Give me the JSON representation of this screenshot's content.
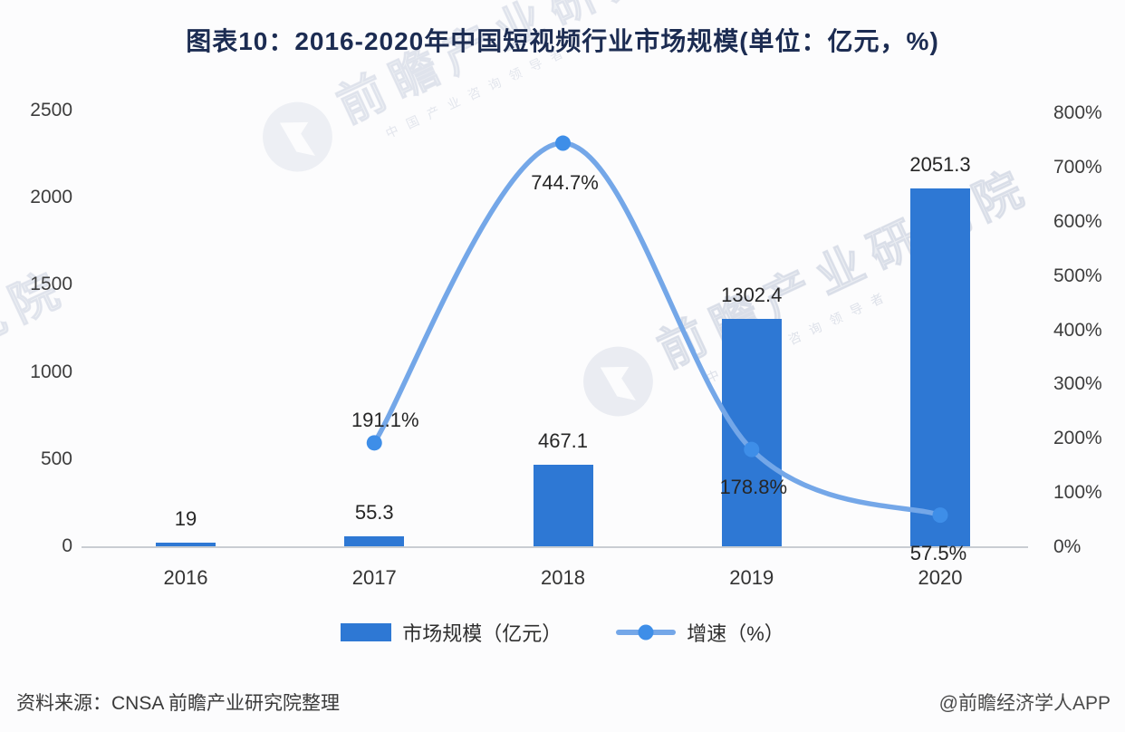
{
  "title": "图表10：2016-2020年中国短视频行业市场规模(单位：亿元，%)",
  "watermark": {
    "text": "前瞻产业研究院",
    "subtext": "中国产业咨询领导者"
  },
  "chart_data": {
    "type": "bar",
    "subtype": "bar+line combo, dual axis",
    "title": "图表10：2016-2020年中国短视频行业市场规模(单位：亿元，%)",
    "categories": [
      "2016",
      "2017",
      "2018",
      "2019",
      "2020"
    ],
    "series": [
      {
        "name": "市场规模（亿元）",
        "type": "bar",
        "axis": "left",
        "values": [
          19,
          55.3,
          467.1,
          1302.4,
          2051.3
        ]
      },
      {
        "name": "增速（%）",
        "type": "line",
        "axis": "right",
        "values": [
          null,
          191.1,
          744.7,
          178.8,
          57.5
        ]
      }
    ],
    "left_axis": {
      "min": 0,
      "max": 2500,
      "ticks": [
        "2500",
        "2000",
        "1500",
        "1000",
        "500",
        "0"
      ]
    },
    "right_axis": {
      "min": 0,
      "max": 800,
      "ticks": [
        "800%",
        "700%",
        "600%",
        "500%",
        "400%",
        "300%",
        "200%",
        "100%",
        "0%"
      ]
    },
    "legend": [
      "市场规模（亿元）",
      "增速（%）"
    ],
    "legend_position": "bottom",
    "grid": false
  },
  "colors": {
    "bar": "#2e78d4",
    "line": "#74a7e8",
    "marker": "#3e8ee8",
    "title_text": "#1c2c52",
    "axis_text": "#3d3d3d",
    "label_text": "#262626"
  },
  "footer": {
    "source": "资料来源：CNSA 前瞻产业研究院整理",
    "credit": "@前瞻经济学人APP"
  }
}
